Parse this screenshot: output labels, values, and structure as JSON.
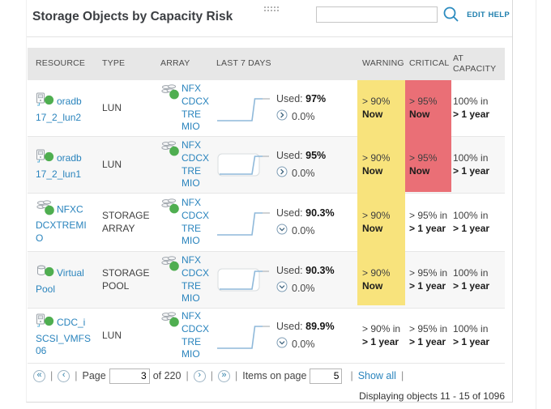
{
  "colors": {
    "link": "#2a84bd",
    "warning_bg": "#f8e37c",
    "critical_bg": "#ea6f76",
    "status_ok_green": "#4fae50",
    "header_bg": "#e7e7e7"
  },
  "widget": {
    "title": "Storage Objects by Capacity Risk",
    "search_value": "",
    "search_placeholder": "",
    "edit_label": "EDIT",
    "help_label": "HELP"
  },
  "table": {
    "headers": [
      "RESOURCE",
      "TYPE",
      "ARRAY",
      "LAST 7 DAYS",
      "WARNING",
      "CRITICAL",
      "AT CAPACITY"
    ],
    "rows": [
      {
        "resource": "oradb 17_2_lun2",
        "resource_icon": "lun-icon",
        "status_icon": "green-status-dot",
        "type": "LUN",
        "array": "NFX CDCXTRE MIO",
        "array_icon": "storage-array-icon",
        "used_label": "Used:",
        "used_value": "97%",
        "trend_icon": "right-chevron-circle-icon",
        "trend_value": "0.0%",
        "warning": [
          "> 90%",
          "Now"
        ],
        "critical": [
          "> 95%",
          "Now"
        ],
        "capacity": [
          "100% in",
          "> 1 year"
        ]
      },
      {
        "resource": "oradb 17_2_lun1",
        "resource_icon": "lun-icon",
        "status_icon": "green-status-dot",
        "type": "LUN",
        "array": "NFX CDCXTRE MIO",
        "array_icon": "storage-array-icon",
        "used_label": "Used:",
        "used_value": "95%",
        "trend_icon": "right-chevron-circle-icon",
        "trend_value": "0.0%",
        "warning": [
          "> 90%",
          "Now"
        ],
        "critical": [
          "> 95%",
          "Now"
        ],
        "capacity": [
          "100% in",
          "> 1 year"
        ]
      },
      {
        "resource": "NFXC DCXTREMIO",
        "resource_icon": "storage-array-icon",
        "status_icon": "green-status-dot",
        "type": "STORAGE ARRAY",
        "array": "NFX CDCXTRE MIO",
        "array_icon": "storage-array-icon",
        "used_label": "Used:",
        "used_value": "90.3%",
        "trend_icon": "down-chevron-circle-icon",
        "trend_value": "0.0%",
        "warning": [
          "> 90%",
          "Now"
        ],
        "critical": [
          "> 95% in",
          "> 1 year"
        ],
        "capacity": [
          "100% in",
          "> 1 year"
        ]
      },
      {
        "resource": "Virtual Pool",
        "resource_icon": "storage-pool-icon",
        "status_icon": "green-status-dot",
        "type": "STORAGE POOL",
        "array": "NFX CDCXTRE MIO",
        "array_icon": "storage-array-icon",
        "used_label": "Used:",
        "used_value": "90.3%",
        "trend_icon": "down-chevron-circle-icon",
        "trend_value": "0.0%",
        "warning": [
          "> 90%",
          "Now"
        ],
        "critical": [
          "> 95% in",
          "> 1 year"
        ],
        "capacity": [
          "100% in",
          "> 1 year"
        ]
      },
      {
        "resource": "CDC_i SCSI_VMFS 06",
        "resource_icon": "lun-icon",
        "status_icon": "green-status-dot",
        "type": "LUN",
        "array": "NFX CDCXTRE MIO",
        "array_icon": "storage-array-icon",
        "used_label": "Used:",
        "used_value": "89.9%",
        "trend_icon": "down-chevron-circle-icon",
        "trend_value": "0.0%",
        "warning": [
          "> 90% in",
          "> 1 year"
        ],
        "critical": [
          "> 95% in",
          "> 1 year"
        ],
        "capacity": [
          "100% in",
          "> 1 year"
        ]
      }
    ]
  },
  "pagination": {
    "sep": "|",
    "page_label": "Page",
    "page_value": "3",
    "of_label": "of 220",
    "items_label": "Items on page",
    "items_value": "5",
    "show_all_label": "Show all"
  },
  "footer": {
    "displaying_text": "Displaying objects 11 - 15 of 1096"
  }
}
